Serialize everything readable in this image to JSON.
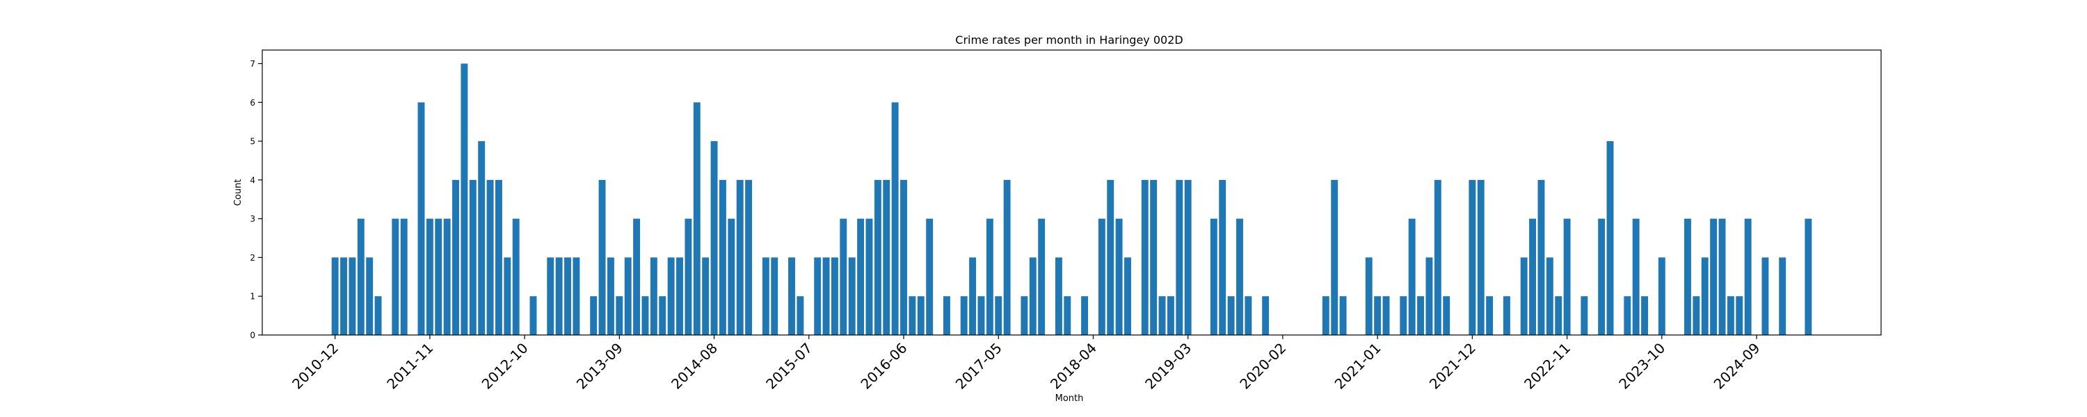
{
  "chart_data": {
    "type": "bar",
    "title": "Crime rates per month in Haringey 002D",
    "xlabel": "Month",
    "ylabel": "Count",
    "ylim": [
      0,
      7.35
    ],
    "yticks": [
      0,
      1,
      2,
      3,
      4,
      5,
      6,
      7
    ],
    "color": "#1f77b4",
    "xtick_labels": [
      "2010-12",
      "2011-11",
      "2012-10",
      "2013-09",
      "2014-08",
      "2015-07",
      "2016-06",
      "2017-05",
      "2018-04",
      "2019-03",
      "2020-02",
      "2021-01",
      "2021-12",
      "2022-11",
      "2023-10",
      "2024-09"
    ],
    "start_month": "2010-12",
    "values": [
      2,
      2,
      2,
      3,
      2,
      1,
      0,
      3,
      3,
      0,
      6,
      3,
      3,
      3,
      4,
      7,
      4,
      5,
      4,
      4,
      2,
      3,
      0,
      1,
      0,
      2,
      2,
      2,
      2,
      0,
      1,
      4,
      2,
      1,
      2,
      3,
      1,
      2,
      1,
      2,
      2,
      3,
      6,
      2,
      5,
      4,
      3,
      4,
      4,
      0,
      2,
      2,
      0,
      2,
      1,
      0,
      2,
      2,
      2,
      3,
      2,
      3,
      3,
      4,
      4,
      6,
      4,
      1,
      1,
      3,
      0,
      1,
      0,
      1,
      2,
      1,
      3,
      1,
      4,
      0,
      1,
      2,
      3,
      0,
      2,
      1,
      0,
      1,
      0,
      3,
      4,
      3,
      2,
      0,
      4,
      4,
      1,
      1,
      4,
      4,
      0,
      0,
      3,
      4,
      1,
      3,
      1,
      0,
      1,
      0,
      0,
      0,
      0,
      0,
      0,
      1,
      4,
      1,
      0,
      0,
      2,
      1,
      1,
      0,
      1,
      3,
      1,
      2,
      4,
      1,
      0,
      0,
      4,
      4,
      1,
      0,
      1,
      0,
      2,
      3,
      4,
      2,
      1,
      3,
      0,
      1,
      0,
      3,
      5,
      0,
      1,
      3,
      1,
      0,
      2,
      0,
      0,
      3,
      1,
      2,
      3,
      3,
      1,
      1,
      3,
      0,
      2,
      0,
      2,
      0,
      0,
      3
    ]
  }
}
